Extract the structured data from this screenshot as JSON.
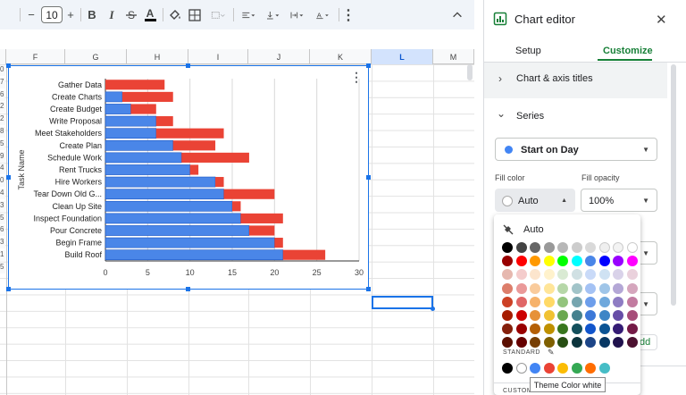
{
  "toolbar": {
    "font_size": "10",
    "minus": "−",
    "plus": "+",
    "bold": "B",
    "italic": "I",
    "text_color_letter": "A"
  },
  "columns": [
    "F",
    "G",
    "H",
    "I",
    "J",
    "K",
    "L",
    "M"
  ],
  "row_numbers": [
    "0",
    "7",
    "6",
    "2",
    "2",
    "8",
    "5",
    "9",
    "4",
    "0",
    "4",
    "3",
    "5",
    "6",
    "3",
    "1",
    "5"
  ],
  "chart_data": {
    "type": "bar",
    "orientation": "horizontal",
    "stacked": true,
    "ylabel": "Task Name",
    "xlim": [
      0,
      30
    ],
    "xticks": [
      "0",
      "5",
      "10",
      "15",
      "20",
      "25",
      "30"
    ],
    "categories": [
      "Gather Data",
      "Create Charts",
      "Create Budget",
      "Write Proposal",
      "Meet Stakeholders",
      "Create Plan",
      "Schedule Work",
      "Rent Trucks",
      "Hire Workers",
      "Tear Down Old G...",
      "Clean Up Site",
      "Inspect Foundation",
      "Pour Concrete",
      "Begin Frame",
      "Build Roof"
    ],
    "series": [
      {
        "color": "#4a86e8",
        "values": [
          0,
          2,
          3,
          6,
          6,
          8,
          9,
          10,
          13,
          14,
          15,
          16,
          17,
          20,
          21
        ]
      },
      {
        "color": "#ea4335",
        "values": [
          7,
          6,
          3,
          2,
          8,
          5,
          8,
          1,
          1,
          6,
          1,
          5,
          3,
          1,
          5
        ]
      }
    ]
  },
  "editor": {
    "title": "Chart editor",
    "tab_setup": "Setup",
    "tab_customize": "Customize",
    "section_titles": "Chart & axis titles",
    "section_series": "Series",
    "series_selected": "Start on Day",
    "series_dot_color": "#4285f4",
    "fill_color_label": "Fill color",
    "fill_opacity_label": "Fill opacity",
    "fill_color_value": "Auto",
    "fill_opacity_value": "100%",
    "partial_button": "dd"
  },
  "palette": {
    "auto_label": "Auto",
    "standard_label": "STANDARD",
    "custom_label": "CUSTOM",
    "tooltip": "Theme Color white",
    "grid": [
      [
        "#000000",
        "#434343",
        "#666666",
        "#999999",
        "#b7b7b7",
        "#cccccc",
        "#d9d9d9",
        "#efefef",
        "#f3f3f3",
        "#ffffff"
      ],
      [
        "#980000",
        "#ff0000",
        "#ff9900",
        "#ffff00",
        "#00ff00",
        "#00ffff",
        "#4a86e8",
        "#0000ff",
        "#9900ff",
        "#ff00ff"
      ],
      [
        "#e6b8af",
        "#f4cccc",
        "#fce5cd",
        "#fff2cc",
        "#d9ead3",
        "#d0e0e3",
        "#c9daf8",
        "#cfe2f3",
        "#d9d2e9",
        "#ead1dc"
      ],
      [
        "#dd7e6b",
        "#ea9999",
        "#f9cb9c",
        "#ffe599",
        "#b6d7a8",
        "#a2c4c9",
        "#a4c2f4",
        "#9fc5e8",
        "#b4a7d6",
        "#d5a6bd"
      ],
      [
        "#cc4125",
        "#e06666",
        "#f6b26b",
        "#ffd966",
        "#93c47d",
        "#76a5af",
        "#6d9eeb",
        "#6fa8dc",
        "#8e7cc3",
        "#c27ba0"
      ],
      [
        "#a61c00",
        "#cc0000",
        "#e69138",
        "#f1c232",
        "#6aa84f",
        "#45818e",
        "#3c78d8",
        "#3d85c6",
        "#674ea7",
        "#a64d79"
      ],
      [
        "#85200c",
        "#990000",
        "#b45f06",
        "#bf9000",
        "#38761d",
        "#134f5c",
        "#1155cc",
        "#0b5394",
        "#351c75",
        "#741b47"
      ],
      [
        "#5b0f00",
        "#660000",
        "#783f04",
        "#7f6000",
        "#274e13",
        "#0c343d",
        "#1c4587",
        "#073763",
        "#20124d",
        "#4c1130"
      ]
    ],
    "standard": [
      "#000000",
      "#ffffff",
      "#4285f4",
      "#ea4335",
      "#fbbc04",
      "#34a853",
      "#ff6d01",
      "#46bdc6"
    ]
  }
}
